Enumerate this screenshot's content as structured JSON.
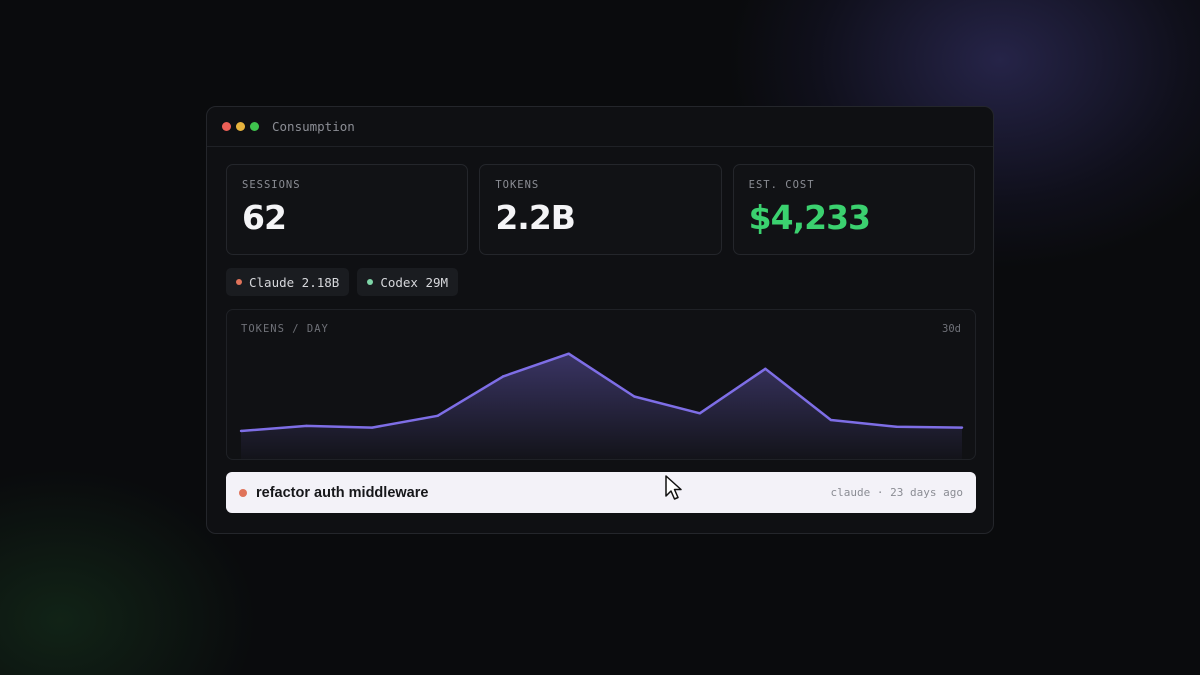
{
  "window": {
    "title": "Consumption",
    "traffic_lights": [
      "#ec5f57",
      "#e6b33d",
      "#3fc24d"
    ]
  },
  "stats": [
    {
      "label": "SESSIONS",
      "value": "62"
    },
    {
      "label": "TOKENS",
      "value": "2.2B"
    },
    {
      "label": "EST. COST",
      "value": "$4,233",
      "color": "#3bd16f"
    }
  ],
  "legend": [
    {
      "label": "Claude 2.18B",
      "color": "#e0735a"
    },
    {
      "label": "Codex 29M",
      "color": "#7fd6a8"
    }
  ],
  "chart_data": {
    "type": "area",
    "title": "TOKENS / DAY",
    "range_label": "30d",
    "line_color": "#7e6ee6",
    "values": [
      0.06,
      0.12,
      0.1,
      0.24,
      0.71,
      0.98,
      0.47,
      0.27,
      0.8,
      0.19,
      0.11,
      0.1
    ]
  },
  "activity": {
    "title": "refactor auth middleware",
    "meta": "claude · 23 days ago",
    "dot_color": "#e0735a"
  }
}
